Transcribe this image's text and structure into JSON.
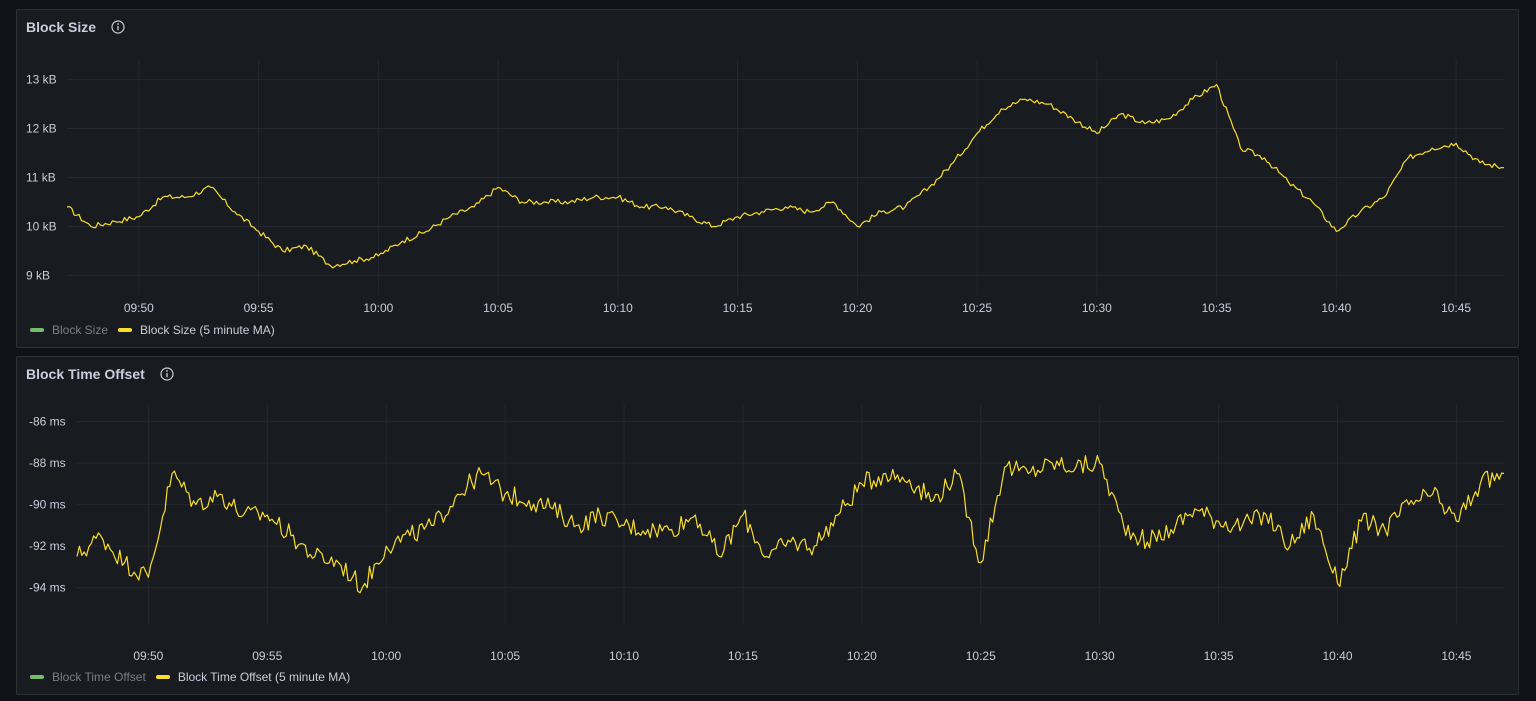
{
  "colors": {
    "background": "#111217",
    "panel": "#181b1f",
    "grid": "#25282e",
    "text": "#ccccdc",
    "raw_series": "#73bf69",
    "ma_series": "#fade2a"
  },
  "icons": {
    "info": "info-circle-icon"
  },
  "panels": [
    {
      "title": "Block Size",
      "legend": [
        {
          "label": "Block Size",
          "color": "#73bf69",
          "hidden": true
        },
        {
          "label": "Block Size (5 minute MA)",
          "color": "#fade2a",
          "hidden": false
        }
      ]
    },
    {
      "title": "Block Time Offset",
      "legend": [
        {
          "label": "Block Time Offset",
          "color": "#73bf69",
          "hidden": true
        },
        {
          "label": "Block Time Offset (5 minute MA)",
          "color": "#fade2a",
          "hidden": false
        }
      ]
    }
  ],
  "chart_data": [
    {
      "type": "line",
      "title": "Block Size",
      "grid": true,
      "legend_position": "bottom-left",
      "xlim": [
        "09:47",
        "10:47"
      ],
      "x_ticks": [
        "09:50",
        "09:55",
        "10:00",
        "10:05",
        "10:10",
        "10:15",
        "10:20",
        "10:25",
        "10:30",
        "10:35",
        "10:40",
        "10:45"
      ],
      "ylim": [
        8.6,
        13.4
      ],
      "y_ticks": [
        13,
        12,
        11,
        10,
        9
      ],
      "y_tick_labels": [
        "13 kB",
        "12 kB",
        "11 kB",
        "10 kB",
        "9 kB"
      ],
      "series": [
        {
          "name": "Block Size (5 minute MA)",
          "x": [
            "09:47",
            "09:48",
            "09:49",
            "09:50",
            "09:51",
            "09:52",
            "09:53",
            "09:54",
            "09:55",
            "09:56",
            "09:57",
            "09:58",
            "09:59",
            "10:00",
            "10:01",
            "10:02",
            "10:03",
            "10:04",
            "10:05",
            "10:06",
            "10:07",
            "10:08",
            "10:09",
            "10:10",
            "10:11",
            "10:12",
            "10:13",
            "10:14",
            "10:15",
            "10:16",
            "10:17",
            "10:18",
            "10:19",
            "10:20",
            "10:21",
            "10:22",
            "10:23",
            "10:24",
            "10:25",
            "10:26",
            "10:27",
            "10:28",
            "10:29",
            "10:30",
            "10:31",
            "10:32",
            "10:33",
            "10:34",
            "10:35",
            "10:36",
            "10:37",
            "10:38",
            "10:39",
            "10:40",
            "10:41",
            "10:42",
            "10:43",
            "10:44",
            "10:45",
            "10:46",
            "10:47"
          ],
          "values": [
            10.4,
            10.0,
            10.1,
            10.2,
            10.6,
            10.6,
            10.8,
            10.3,
            9.9,
            9.5,
            9.6,
            9.2,
            9.3,
            9.4,
            9.7,
            9.9,
            10.2,
            10.4,
            10.8,
            10.5,
            10.5,
            10.5,
            10.6,
            10.6,
            10.4,
            10.4,
            10.2,
            10.0,
            10.2,
            10.3,
            10.4,
            10.3,
            10.5,
            10.0,
            10.3,
            10.4,
            10.8,
            11.3,
            11.9,
            12.4,
            12.6,
            12.5,
            12.2,
            11.9,
            12.3,
            12.1,
            12.2,
            12.6,
            12.9,
            11.6,
            11.4,
            10.9,
            10.5,
            9.9,
            10.3,
            10.6,
            11.4,
            11.6,
            11.7,
            11.3,
            11.2
          ]
        }
      ]
    },
    {
      "type": "line",
      "title": "Block Time Offset",
      "grid": true,
      "legend_position": "bottom-left",
      "xlim": [
        "09:47",
        "10:47"
      ],
      "x_ticks": [
        "09:50",
        "09:55",
        "10:00",
        "10:05",
        "10:10",
        "10:15",
        "10:20",
        "10:25",
        "10:30",
        "10:35",
        "10:40",
        "10:45"
      ],
      "ylim": [
        -95.8,
        -85.2
      ],
      "y_ticks": [
        -86,
        -88,
        -90,
        -92,
        -94
      ],
      "y_tick_labels": [
        "-86 ms",
        "-88 ms",
        "-90 ms",
        "-92 ms",
        "-94 ms"
      ],
      "series": [
        {
          "name": "Block Time Offset (5 minute MA)",
          "x": [
            "09:47",
            "09:48",
            "09:49",
            "09:50",
            "09:51",
            "09:52",
            "09:53",
            "09:54",
            "09:55",
            "09:56",
            "09:57",
            "09:58",
            "09:59",
            "10:00",
            "10:01",
            "10:02",
            "10:03",
            "10:04",
            "10:05",
            "10:06",
            "10:07",
            "10:08",
            "10:09",
            "10:10",
            "10:11",
            "10:12",
            "10:13",
            "10:14",
            "10:15",
            "10:16",
            "10:17",
            "10:18",
            "10:19",
            "10:20",
            "10:21",
            "10:22",
            "10:23",
            "10:24",
            "10:25",
            "10:26",
            "10:27",
            "10:28",
            "10:29",
            "10:30",
            "10:31",
            "10:32",
            "10:33",
            "10:34",
            "10:35",
            "10:36",
            "10:37",
            "10:38",
            "10:39",
            "10:40",
            "10:41",
            "10:42",
            "10:43",
            "10:44",
            "10:45",
            "10:46",
            "10:47"
          ],
          "values": [
            -92.5,
            -91.5,
            -92.8,
            -93.5,
            -88.5,
            -90.0,
            -89.5,
            -90.5,
            -90.5,
            -91.5,
            -92.5,
            -92.8,
            -94.0,
            -92.0,
            -91.5,
            -91.0,
            -89.5,
            -88.5,
            -89.5,
            -89.8,
            -90.2,
            -91.0,
            -90.5,
            -91.0,
            -91.2,
            -91.2,
            -90.5,
            -92.5,
            -90.5,
            -92.5,
            -91.8,
            -92.0,
            -90.5,
            -89.0,
            -88.5,
            -88.8,
            -89.8,
            -88.5,
            -92.8,
            -88.2,
            -88.5,
            -88.0,
            -88.2,
            -88.0,
            -91.0,
            -91.8,
            -91.2,
            -90.2,
            -90.8,
            -91.0,
            -90.5,
            -92.0,
            -90.5,
            -93.8,
            -90.8,
            -91.2,
            -90.0,
            -89.5,
            -90.8,
            -89.0,
            -88.5
          ]
        }
      ]
    }
  ]
}
